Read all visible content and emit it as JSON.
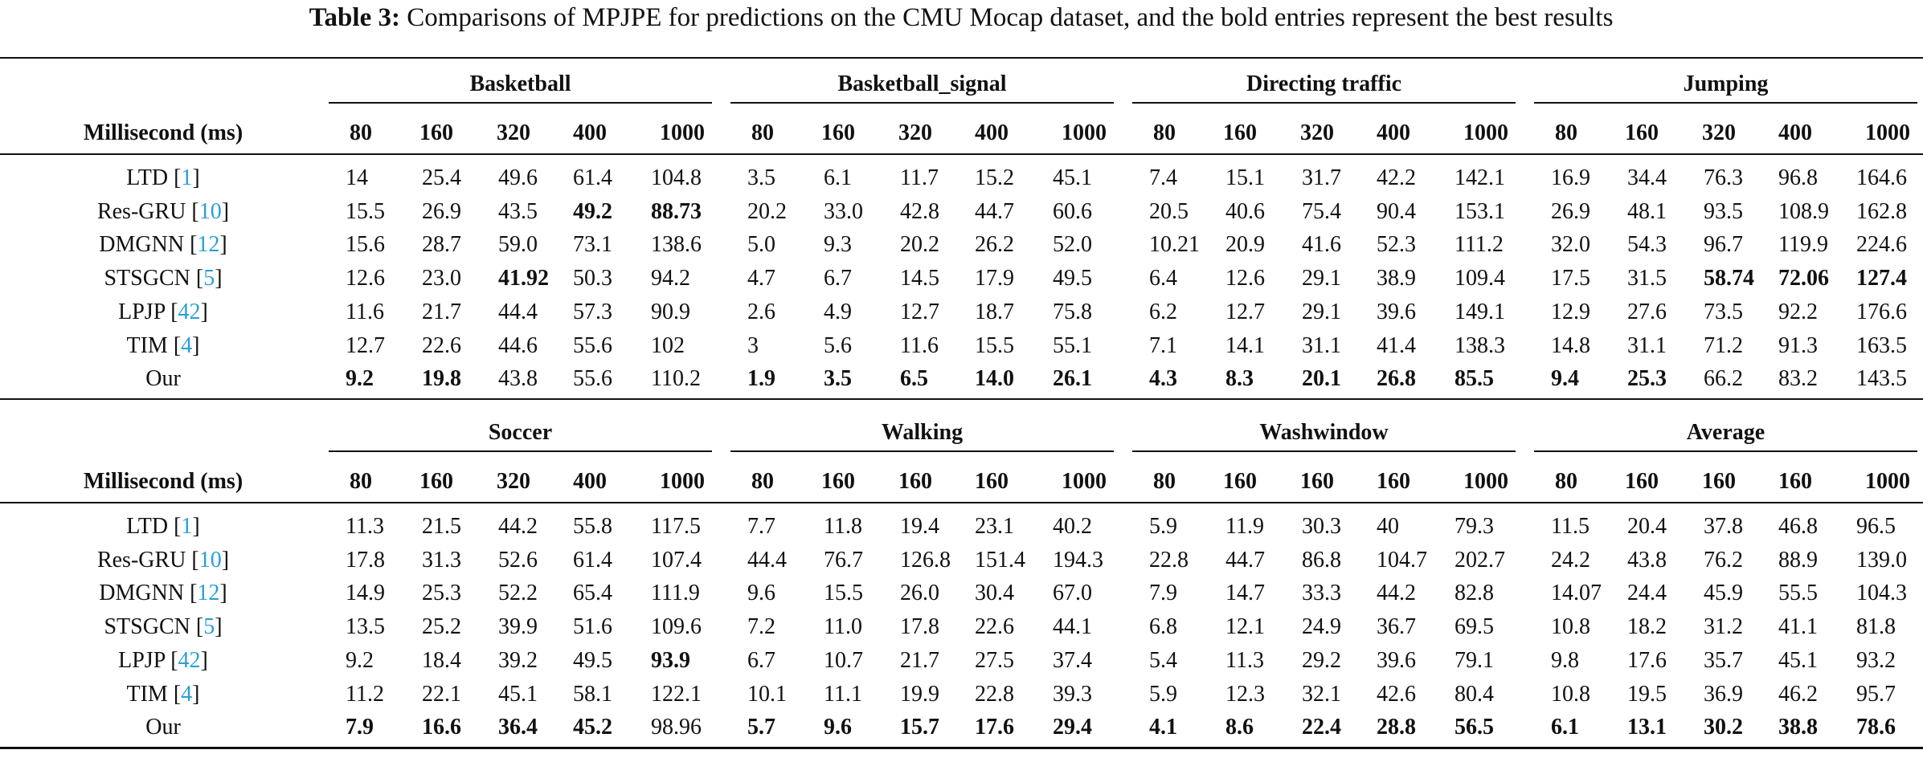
{
  "caption_label": "Table 3:",
  "caption_text": "Comparisons of MPJPE for predictions on the CMU Mocap dataset, and the bold entries represent the best results",
  "blocks": [
    {
      "header": "Millisecond (ms)",
      "groups": [
        "Basketball",
        "Basketball_signal",
        "Directing traffic",
        "Jumping"
      ],
      "horizons": [
        "80",
        "160",
        "320",
        "400",
        "1000",
        "80",
        "160",
        "320",
        "400",
        "1000",
        "80",
        "160",
        "320",
        "400",
        "1000",
        "80",
        "160",
        "320",
        "400",
        "1000"
      ],
      "rows": [
        {
          "name": "LTD",
          "cite": [
            "[",
            "1",
            "]"
          ],
          "values": [
            "14",
            "25.4",
            "49.6",
            "61.4",
            "104.8",
            "3.5",
            "6.1",
            "11.7",
            "15.2",
            "45.1",
            "7.4",
            "15.1",
            "31.7",
            "42.2",
            "142.1",
            "16.9",
            "34.4",
            "76.3",
            "96.8",
            "164.6"
          ],
          "bold": []
        },
        {
          "name": "Res-GRU",
          "cite": [
            "[",
            "10",
            "]"
          ],
          "values": [
            "15.5",
            "26.9",
            "43.5",
            "49.2",
            "88.73",
            "20.2",
            "33.0",
            "42.8",
            "44.7",
            "60.6",
            "20.5",
            "40.6",
            "75.4",
            "90.4",
            "153.1",
            "26.9",
            "48.1",
            "93.5",
            "108.9",
            "162.8"
          ],
          "bold": [
            3,
            4
          ]
        },
        {
          "name": "DMGNN",
          "cite": [
            "[",
            "12",
            "]"
          ],
          "values": [
            "15.6",
            "28.7",
            "59.0",
            "73.1",
            "138.6",
            "5.0",
            "9.3",
            "20.2",
            "26.2",
            "52.0",
            "10.21",
            "20.9",
            "41.6",
            "52.3",
            "111.2",
            "32.0",
            "54.3",
            "96.7",
            "119.9",
            "224.6"
          ],
          "bold": []
        },
        {
          "name": "STSGCN",
          "cite": [
            "[",
            "5",
            "]"
          ],
          "values": [
            "12.6",
            "23.0",
            "41.92",
            "50.3",
            "94.2",
            "4.7",
            "6.7",
            "14.5",
            "17.9",
            "49.5",
            "6.4",
            "12.6",
            "29.1",
            "38.9",
            "109.4",
            "17.5",
            "31.5",
            "58.74",
            "72.06",
            "127.4"
          ],
          "bold": [
            2,
            17,
            18,
            19
          ]
        },
        {
          "name": "LPJP",
          "cite": [
            "[",
            "42",
            "]"
          ],
          "values": [
            "11.6",
            "21.7",
            "44.4",
            "57.3",
            "90.9",
            "2.6",
            "4.9",
            "12.7",
            "18.7",
            "75.8",
            "6.2",
            "12.7",
            "29.1",
            "39.6",
            "149.1",
            "12.9",
            "27.6",
            "73.5",
            "92.2",
            "176.6"
          ],
          "bold": []
        },
        {
          "name": "TIM",
          "cite": [
            "[",
            "4",
            "]"
          ],
          "values": [
            "12.7",
            "22.6",
            "44.6",
            "55.6",
            "102",
            "3",
            "5.6",
            "11.6",
            "15.5",
            "55.1",
            "7.1",
            "14.1",
            "31.1",
            "41.4",
            "138.3",
            "14.8",
            "31.1",
            "71.2",
            "91.3",
            "163.5"
          ],
          "bold": []
        },
        {
          "name": "Our",
          "cite": null,
          "values": [
            "9.2",
            "19.8",
            "43.8",
            "55.6",
            "110.2",
            "1.9",
            "3.5",
            "6.5",
            "14.0",
            "26.1",
            "4.3",
            "8.3",
            "20.1",
            "26.8",
            "85.5",
            "9.4",
            "25.3",
            "66.2",
            "83.2",
            "143.5"
          ],
          "bold": [
            0,
            1,
            5,
            6,
            7,
            8,
            9,
            10,
            11,
            12,
            13,
            14,
            15,
            16
          ]
        }
      ]
    },
    {
      "header": "Millisecond (ms)",
      "groups": [
        "Soccer",
        "Walking",
        "Washwindow",
        "Average"
      ],
      "horizons": [
        "80",
        "160",
        "320",
        "400",
        "1000",
        "80",
        "160",
        "160",
        "160",
        "1000",
        "80",
        "160",
        "160",
        "160",
        "1000",
        "80",
        "160",
        "160",
        "160",
        "1000"
      ],
      "rows": [
        {
          "name": "LTD",
          "cite": [
            "[",
            "1",
            "]"
          ],
          "values": [
            "11.3",
            "21.5",
            "44.2",
            "55.8",
            "117.5",
            "7.7",
            "11.8",
            "19.4",
            "23.1",
            "40.2",
            "5.9",
            "11.9",
            "30.3",
            "40",
            "79.3",
            "11.5",
            "20.4",
            "37.8",
            "46.8",
            "96.5"
          ],
          "bold": []
        },
        {
          "name": "Res-GRU",
          "cite": [
            "[",
            "10",
            "]"
          ],
          "values": [
            "17.8",
            "31.3",
            "52.6",
            "61.4",
            "107.4",
            "44.4",
            "76.7",
            "126.8",
            "151.4",
            "194.3",
            "22.8",
            "44.7",
            "86.8",
            "104.7",
            "202.7",
            "24.2",
            "43.8",
            "76.2",
            "88.9",
            "139.0"
          ],
          "bold": []
        },
        {
          "name": "DMGNN",
          "cite": [
            "[",
            "12",
            "]"
          ],
          "values": [
            "14.9",
            "25.3",
            "52.2",
            "65.4",
            "111.9",
            "9.6",
            "15.5",
            "26.0",
            "30.4",
            "67.0",
            "7.9",
            "14.7",
            "33.3",
            "44.2",
            "82.8",
            "14.07",
            "24.4",
            "45.9",
            "55.5",
            "104.3"
          ],
          "bold": []
        },
        {
          "name": "STSGCN",
          "cite": [
            "[",
            "5",
            "]"
          ],
          "values": [
            "13.5",
            "25.2",
            "39.9",
            "51.6",
            "109.6",
            "7.2",
            "11.0",
            "17.8",
            "22.6",
            "44.1",
            "6.8",
            "12.1",
            "24.9",
            "36.7",
            "69.5",
            "10.8",
            "18.2",
            "31.2",
            "41.1",
            "81.8"
          ],
          "bold": []
        },
        {
          "name": "LPJP",
          "cite": [
            "[",
            "42",
            "]"
          ],
          "values": [
            "9.2",
            "18.4",
            "39.2",
            "49.5",
            "93.9",
            "6.7",
            "10.7",
            "21.7",
            "27.5",
            "37.4",
            "5.4",
            "11.3",
            "29.2",
            "39.6",
            "79.1",
            "9.8",
            "17.6",
            "35.7",
            "45.1",
            "93.2"
          ],
          "bold": [
            4
          ]
        },
        {
          "name": "TIM",
          "cite": [
            "[",
            "4",
            "]"
          ],
          "values": [
            "11.2",
            "22.1",
            "45.1",
            "58.1",
            "122.1",
            "10.1",
            "11.1",
            "19.9",
            "22.8",
            "39.3",
            "5.9",
            "12.3",
            "32.1",
            "42.6",
            "80.4",
            "10.8",
            "19.5",
            "36.9",
            "46.2",
            "95.7"
          ],
          "bold": []
        },
        {
          "name": "Our",
          "cite": null,
          "values": [
            "7.9",
            "16.6",
            "36.4",
            "45.2",
            "98.96",
            "5.7",
            "9.6",
            "15.7",
            "17.6",
            "29.4",
            "4.1",
            "8.6",
            "22.4",
            "28.8",
            "56.5",
            "6.1",
            "13.1",
            "30.2",
            "38.8",
            "78.6"
          ],
          "bold": [
            0,
            1,
            2,
            3,
            5,
            6,
            7,
            8,
            9,
            10,
            11,
            12,
            13,
            14,
            15,
            16,
            17,
            18,
            19
          ]
        }
      ]
    }
  ]
}
